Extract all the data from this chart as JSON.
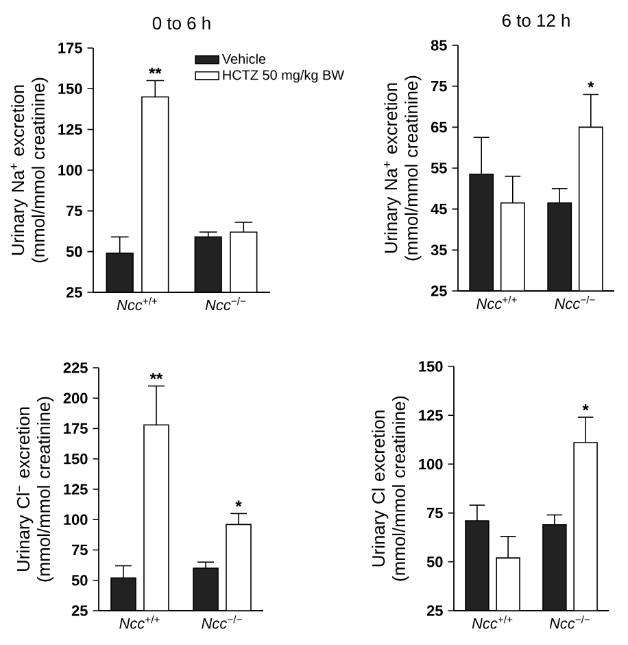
{
  "chart_data": [
    {
      "type": "bar",
      "title": "0 to 6 h",
      "ylabel": "Urinary Na$^{+}$ excretion (mmol/mmol creatinine)",
      "categories": [
        "*Ncc*$^{+/+}$",
        "*Ncc*$^{−/−}$"
      ],
      "ylim": [
        25,
        175
      ],
      "yticks": [
        25,
        50,
        75,
        100,
        125,
        150,
        175
      ],
      "legend": "top right",
      "series": [
        {
          "name": "Vehicle",
          "color": "#222222",
          "values": [
            49,
            59
          ],
          "errors": [
            [
              49,
              59
            ],
            [
              59,
              62
            ]
          ]
        },
        {
          "name": "HCTZ 50 mg/kg BW",
          "color": "#ffffff",
          "values": [
            145,
            62
          ],
          "errors": [
            [
              145,
              155
            ],
            [
              62,
              68
            ]
          ]
        }
      ],
      "annotations": [
        "**"
      ]
    },
    {
      "type": "bar",
      "title": "6 to 12 h",
      "ylabel": "Urinary Na$^{+}$ excretion (mmol/mmol creatinine)",
      "categories": [
        "*Ncc*$^{+/+}$",
        "*Ncc*$^{−/−}$"
      ],
      "ylim": [
        25,
        85
      ],
      "yticks": [
        25,
        35,
        45,
        55,
        65,
        75,
        85
      ],
      "series": [
        {
          "color": "#222222",
          "values": [
            53.5,
            46.5
          ],
          "errors": [
            [
              53.5,
              62.5
            ],
            [
              46.5,
              50
            ]
          ]
        },
        {
          "color": "#ffffff",
          "values": [
            46.5,
            65
          ],
          "errors": [
            [
              46.5,
              53
            ],
            [
              65,
              73
            ]
          ]
        }
      ],
      "annotations": [
        "*"
      ]
    },
    {
      "type": "bar",
      "ylabel": "Urinary Cl$^{−}$ excretion (mmol/mmol creatinine)",
      "categories": [
        "*Ncc*$^{+/+}$",
        "*Ncc*$^{−/−}$"
      ],
      "ylim": [
        25,
        225
      ],
      "yticks": [
        25,
        50,
        75,
        100,
        125,
        150,
        175,
        200,
        225
      ],
      "series": [
        {
          "color": "#222222",
          "values": [
            52,
            60
          ],
          "errors": [
            [
              52,
              62
            ],
            [
              60,
              65
            ]
          ]
        },
        {
          "color": "#ffffff",
          "values": [
            178,
            96
          ],
          "errors": [
            [
              178,
              210
            ],
            [
              96,
              105
            ]
          ]
        }
      ],
      "annotations": [
        "**",
        "*"
      ]
    },
    {
      "type": "bar",
      "ylabel": "Urinary Cl excretion (mmol/mmol creatinine)",
      "categories": [
        "*Ncc*$^{+/+}$",
        "*Ncc*$^{−/−}$"
      ],
      "ylim": [
        25,
        150
      ],
      "yticks": [
        25,
        50,
        75,
        100,
        125,
        150
      ],
      "series": [
        {
          "color": "#222222",
          "values": [
            71,
            69
          ],
          "errors": [
            [
              71,
              79
            ],
            [
              69,
              74
            ]
          ]
        },
        {
          "color": "#ffffff",
          "values": [
            52,
            111
          ],
          "errors": [
            [
              52,
              63
            ],
            [
              111,
              124
            ]
          ]
        }
      ],
      "annotations": [
        "*"
      ]
    }
  ]
}
